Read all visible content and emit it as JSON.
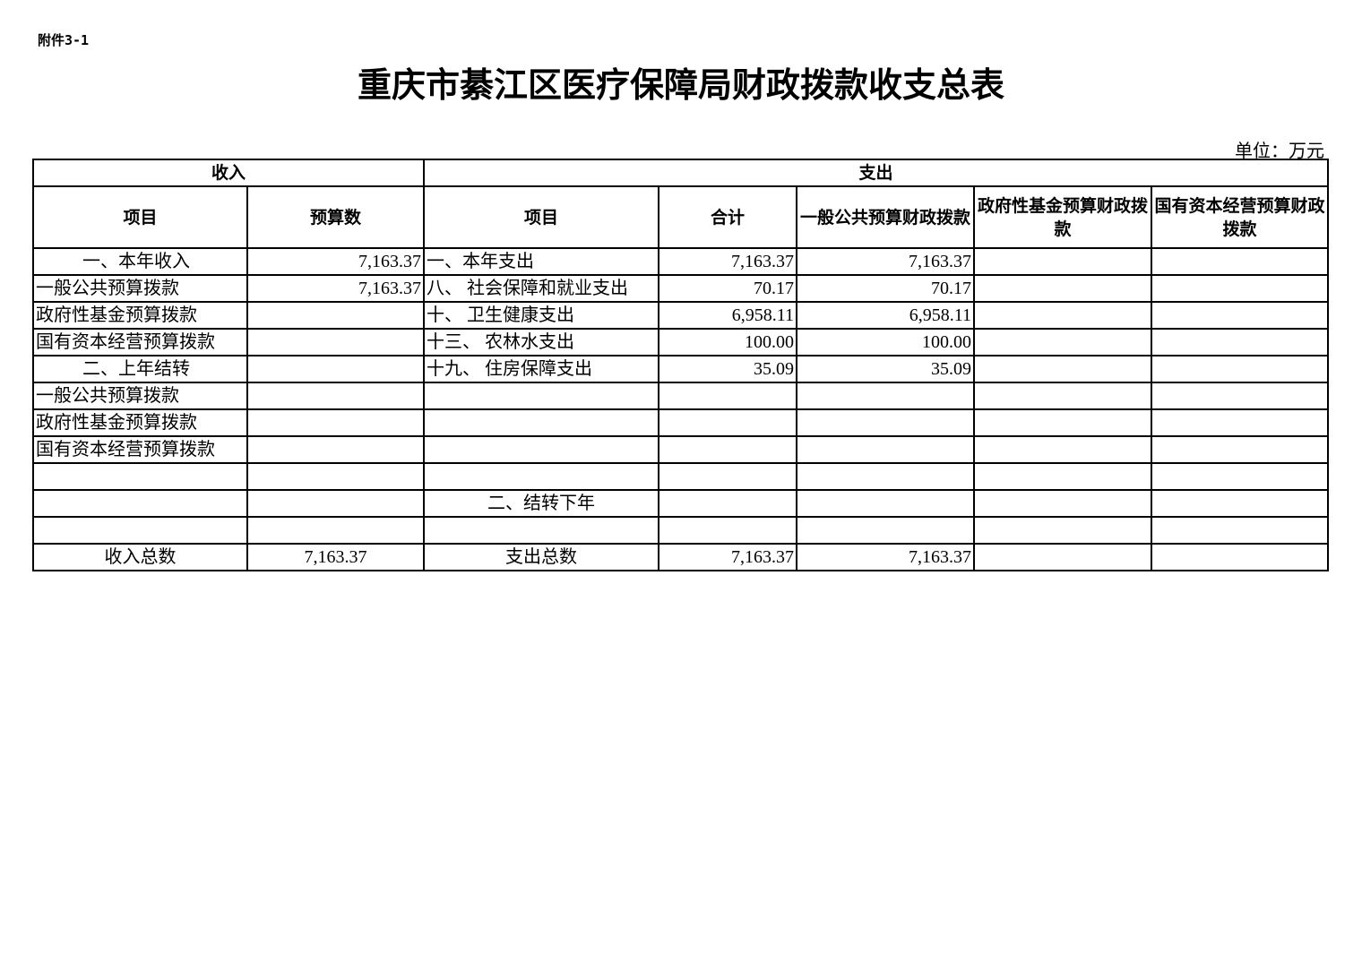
{
  "attachment_label": "附件3-1",
  "title": "重庆市綦江区医疗保障局财政拨款收支总表",
  "unit": "单位：万元",
  "header": {
    "income": "收入",
    "expense": "支出",
    "cols": [
      "项目",
      "预算数",
      "项目",
      "合计",
      "一般公共预算财政拨款",
      "政府性基金预算财政拨款",
      "国有资本经营预算财政拨款"
    ]
  },
  "rows": [
    [
      "一、本年收入",
      "7,163.37",
      "一、本年支出",
      "7,163.37",
      "7,163.37",
      "",
      ""
    ],
    [
      "一般公共预算拨款",
      "7,163.37",
      "八、  社会保障和就业支出",
      "70.17",
      "70.17",
      "",
      ""
    ],
    [
      "政府性基金预算拨款",
      "",
      "十、  卫生健康支出",
      "6,958.11",
      "6,958.11",
      "",
      ""
    ],
    [
      "国有资本经营预算拨款",
      "",
      "十三、  农林水支出",
      "100.00",
      "100.00",
      "",
      ""
    ],
    [
      "二、上年结转",
      "",
      "十九、  住房保障支出",
      "35.09",
      "35.09",
      "",
      ""
    ],
    [
      "一般公共预算拨款",
      "",
      "",
      "",
      "",
      "",
      ""
    ],
    [
      "政府性基金预算拨款",
      "",
      "",
      "",
      "",
      "",
      ""
    ],
    [
      "国有资本经营预算拨款",
      "",
      "",
      "",
      "",
      "",
      ""
    ],
    [
      "",
      "",
      "",
      "",
      "",
      "",
      ""
    ],
    [
      "",
      "",
      "二、结转下年",
      "",
      "",
      "",
      ""
    ],
    [
      "",
      "",
      "",
      "",
      "",
      "",
      ""
    ],
    [
      "收入总数",
      "7,163.37",
      "支出总数",
      "7,163.37",
      "7,163.37",
      "",
      ""
    ]
  ]
}
